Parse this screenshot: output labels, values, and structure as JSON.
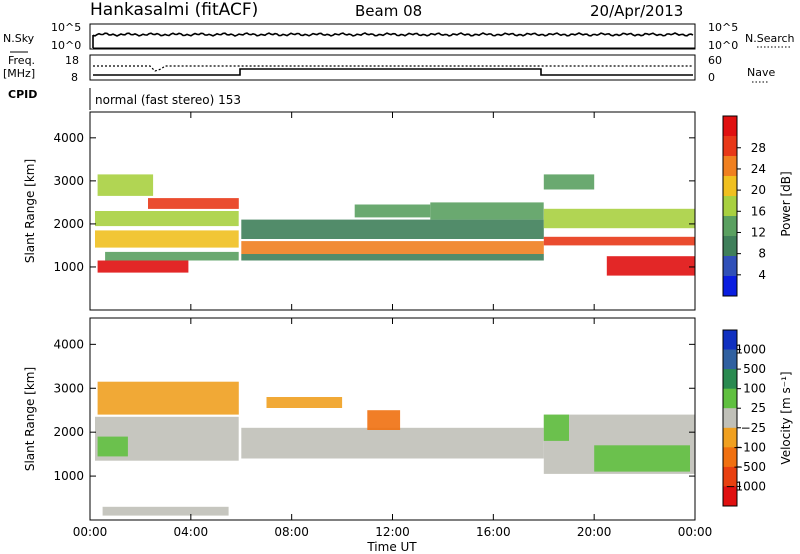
{
  "header": {
    "station": "Hankasalmi (fitACF)",
    "beam": "Beam 08",
    "date": "20/Apr/2013"
  },
  "top_panels": {
    "nsky_label": "N.Sky",
    "nsky_ticks": [
      "10^5",
      "10^0"
    ],
    "nsearch_label": "N.Search",
    "nsearch_ticks": [
      "10^5",
      "10^0"
    ],
    "freq_label": "Freq.",
    "freq_unit": "[MHz]",
    "freq_ticks": [
      "18",
      "8"
    ],
    "nave_label": "Nave",
    "nave_ticks": [
      "60",
      "0"
    ],
    "cpid_label": "CPID",
    "cpid_text": "normal (fast stereo) 153"
  },
  "colors": {
    "power": [
      "#0a1ee0",
      "#3050b8",
      "#3f7f5a",
      "#5aa060",
      "#a8d040",
      "#f0c020",
      "#f08020",
      "#e83818",
      "#e01010"
    ],
    "velocity": [
      "#1030c0",
      "#3060a0",
      "#2a8a50",
      "#60c040",
      "#c0c0b8",
      "#f0a020",
      "#f07010",
      "#e84010",
      "#e01010"
    ],
    "axis": "#000000",
    "background": "#ffffff"
  },
  "chart_data": [
    {
      "type": "heatmap",
      "panel": "power",
      "ylabel": "Slant Range [km]",
      "y_ticks": [
        "1000",
        "2000",
        "3000",
        "4000"
      ],
      "ylim": [
        0,
        4600
      ],
      "xlim": [
        "00:00",
        "24:00"
      ],
      "colorbar": {
        "label": "Power [dB]",
        "ticks": [
          "4",
          "8",
          "12",
          "16",
          "20",
          "24",
          "28"
        ],
        "range": [
          0,
          32
        ]
      },
      "bands": [
        {
          "x": [
            0.3,
            3.9
          ],
          "range_km": [
            870,
            1150
          ],
          "value": 30
        },
        {
          "x": [
            0.6,
            5.9
          ],
          "range_km": [
            1150,
            1350
          ],
          "value": 14
        },
        {
          "x": [
            0.2,
            5.9
          ],
          "range_km": [
            1450,
            1850
          ],
          "value": 20
        },
        {
          "x": [
            0.2,
            5.9
          ],
          "range_km": [
            1950,
            2300
          ],
          "value": 16
        },
        {
          "x": [
            0.3,
            2.5
          ],
          "range_km": [
            2650,
            3150
          ],
          "value": 17
        },
        {
          "x": [
            2.3,
            5.9
          ],
          "range_km": [
            2350,
            2600
          ],
          "value": 26
        },
        {
          "x": [
            6.0,
            18.0
          ],
          "range_km": [
            1650,
            2100
          ],
          "value": 10
        },
        {
          "x": [
            6.0,
            18.0
          ],
          "range_km": [
            1300,
            1600
          ],
          "value": 22
        },
        {
          "x": [
            6.0,
            18.0
          ],
          "range_km": [
            1150,
            1300
          ],
          "value": 8
        },
        {
          "x": [
            10.5,
            13.5
          ],
          "range_km": [
            2150,
            2450
          ],
          "value": 12
        },
        {
          "x": [
            13.5,
            18.0
          ],
          "range_km": [
            2100,
            2500
          ],
          "value": 14
        },
        {
          "x": [
            18.0,
            24.0
          ],
          "range_km": [
            1500,
            1700
          ],
          "value": 26
        },
        {
          "x": [
            18.0,
            24.0
          ],
          "range_km": [
            1900,
            2350
          ],
          "value": 15
        },
        {
          "x": [
            20.5,
            24.0
          ],
          "range_km": [
            800,
            1250
          ],
          "value": 30
        },
        {
          "x": [
            18.0,
            20.0
          ],
          "range_km": [
            2800,
            3150
          ],
          "value": 13
        }
      ]
    },
    {
      "type": "heatmap",
      "panel": "velocity",
      "ylabel": "Slant Range [km]",
      "xlabel": "Time UT",
      "y_ticks": [
        "1000",
        "2000",
        "3000",
        "4000"
      ],
      "ylim": [
        0,
        4600
      ],
      "x_ticks": [
        "00:00",
        "04:00",
        "08:00",
        "12:00",
        "16:00",
        "20:00",
        "00:00"
      ],
      "xlim": [
        "00:00",
        "24:00"
      ],
      "colorbar": {
        "label": "Velocity [m s⁻¹]",
        "ticks": [
          "1000",
          "500",
          "100",
          "25",
          "−25",
          "−100",
          "−500",
          "−1000"
        ],
        "range": [
          -1000,
          1000
        ]
      },
      "bands": [
        {
          "x": [
            0.2,
            5.9
          ],
          "range_km": [
            1350,
            2350
          ],
          "value": 0
        },
        {
          "x": [
            0.3,
            1.5
          ],
          "range_km": [
            1450,
            1900
          ],
          "value": 120
        },
        {
          "x": [
            0.3,
            5.9
          ],
          "range_km": [
            2400,
            3150
          ],
          "value": -300
        },
        {
          "x": [
            6.0,
            18.0
          ],
          "range_km": [
            1400,
            2100
          ],
          "value": 0
        },
        {
          "x": [
            7.0,
            10.0
          ],
          "range_km": [
            2550,
            2800
          ],
          "value": -300
        },
        {
          "x": [
            11.0,
            12.3
          ],
          "range_km": [
            2050,
            2500
          ],
          "value": -400
        },
        {
          "x": [
            18.0,
            24.0
          ],
          "range_km": [
            1050,
            2400
          ],
          "value": 0
        },
        {
          "x": [
            20.0,
            23.8
          ],
          "range_km": [
            1100,
            1700
          ],
          "value": 150
        },
        {
          "x": [
            18.0,
            19.0
          ],
          "range_km": [
            1800,
            2400
          ],
          "value": 200
        },
        {
          "x": [
            0.5,
            5.5
          ],
          "range_km": [
            100,
            300
          ],
          "value": 0
        }
      ]
    }
  ]
}
